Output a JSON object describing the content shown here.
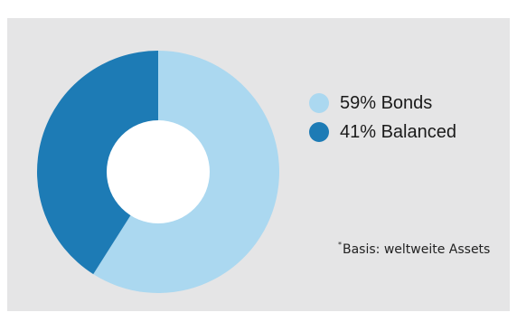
{
  "chart_data": {
    "type": "pie",
    "variant": "donut",
    "slices": [
      {
        "label": "59% Bonds",
        "value": 59,
        "color": "#abd8f0"
      },
      {
        "label": "41% Balanced",
        "value": 41,
        "color": "#1d7bb5"
      }
    ],
    "legend_position": "right",
    "footnote": {
      "marker": "*",
      "text": "Basis: weltweite Assets"
    }
  },
  "colors": {
    "panel_background": "#e5e5e6",
    "hole_background": "#ffffff"
  }
}
